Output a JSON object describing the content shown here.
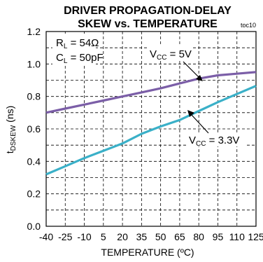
{
  "chart_data": {
    "type": "line",
    "title_lines": [
      "DRIVER PROPAGATION-DELAY",
      "SKEW vs. TEMPERATURE"
    ],
    "figure_tag": "toc10",
    "xlabel": "TEMPERATURE (ºC)",
    "ylabel": {
      "base": "t",
      "sub": "DSKEW",
      "tail": " (ns)"
    },
    "xlim": [
      -40,
      125
    ],
    "ylim": [
      0.0,
      1.2
    ],
    "x_ticks": [
      -40,
      -25,
      -10,
      5,
      20,
      35,
      50,
      65,
      80,
      95,
      110,
      125
    ],
    "y_ticks": [
      "0.0",
      "0.2",
      "0.4",
      "0.6",
      "0.8",
      "1.0",
      "1.2"
    ],
    "grid": true,
    "conditions": [
      {
        "base": "R",
        "sub": "L",
        "tail": " = 54Ω"
      },
      {
        "base": "C",
        "sub": "L",
        "tail": " = 50pF"
      }
    ],
    "series": [
      {
        "color": "#7b5ea7",
        "label": {
          "base": "V",
          "sub": "CC",
          "tail": " = 5V"
        },
        "x": [
          -40,
          -25,
          -10,
          5,
          20,
          35,
          50,
          65,
          80,
          95,
          110,
          125
        ],
        "y": [
          0.7,
          0.725,
          0.75,
          0.775,
          0.8,
          0.825,
          0.85,
          0.88,
          0.91,
          0.93,
          0.94,
          0.95
        ]
      },
      {
        "color": "#3ab0c8",
        "label": {
          "base": "V",
          "sub": "CC",
          "tail": " = 3.3V"
        },
        "x": [
          -40,
          -25,
          -10,
          5,
          20,
          35,
          50,
          65,
          80,
          95,
          110,
          125
        ],
        "y": [
          0.32,
          0.37,
          0.42,
          0.465,
          0.51,
          0.57,
          0.615,
          0.655,
          0.71,
          0.765,
          0.815,
          0.865
        ]
      }
    ]
  }
}
